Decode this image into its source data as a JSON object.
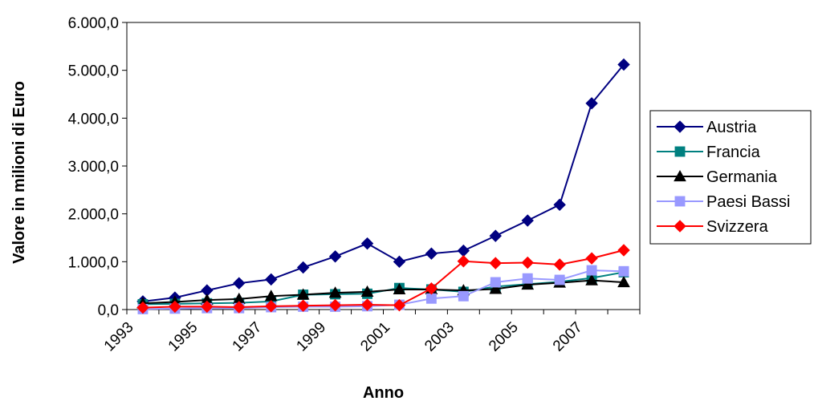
{
  "chart_data": {
    "type": "line",
    "title": "",
    "xlabel": "Anno",
    "ylabel": "Valore in milioni di Euro",
    "x": [
      1993,
      1994,
      1995,
      1996,
      1997,
      1998,
      1999,
      2000,
      2001,
      2002,
      2003,
      2004,
      2005,
      2006,
      2007,
      2008
    ],
    "x_tick_labels": [
      "1993",
      "1995",
      "1997",
      "1999",
      "2001",
      "2003",
      "2005",
      "2007"
    ],
    "y_tick_labels": [
      "0,0",
      "1.000,0",
      "2.000,0",
      "3.000,0",
      "4.000,0",
      "5.000,0",
      "6.000,0"
    ],
    "ylim": [
      0,
      6000
    ],
    "grid": false,
    "legend_position": "right",
    "series": [
      {
        "name": "Austria",
        "color": "#000080",
        "marker": "diamond",
        "values": [
          170,
          250,
          400,
          550,
          630,
          880,
          1110,
          1380,
          1000,
          1170,
          1230,
          1540,
          1860,
          2190,
          4310,
          5120
        ]
      },
      {
        "name": "Francia",
        "color": "#008080",
        "marker": "square",
        "values": [
          110,
          120,
          130,
          140,
          170,
          310,
          320,
          330,
          450,
          420,
          370,
          480,
          530,
          580,
          660,
          780
        ]
      },
      {
        "name": "Germania",
        "color": "#000000",
        "marker": "triangle",
        "values": [
          130,
          160,
          200,
          220,
          280,
          310,
          350,
          370,
          420,
          420,
          400,
          430,
          520,
          560,
          610,
          570
        ]
      },
      {
        "name": "Paesi Bassi",
        "color": "#9999FF",
        "marker": "square",
        "values": [
          10,
          20,
          30,
          30,
          50,
          60,
          60,
          70,
          100,
          230,
          280,
          570,
          650,
          620,
          820,
          800
        ]
      },
      {
        "name": "Svizzera",
        "color": "#FF0000",
        "marker": "diamond",
        "values": [
          40,
          60,
          60,
          50,
          70,
          80,
          90,
          100,
          90,
          440,
          1010,
          970,
          980,
          940,
          1070,
          1240
        ]
      }
    ]
  }
}
